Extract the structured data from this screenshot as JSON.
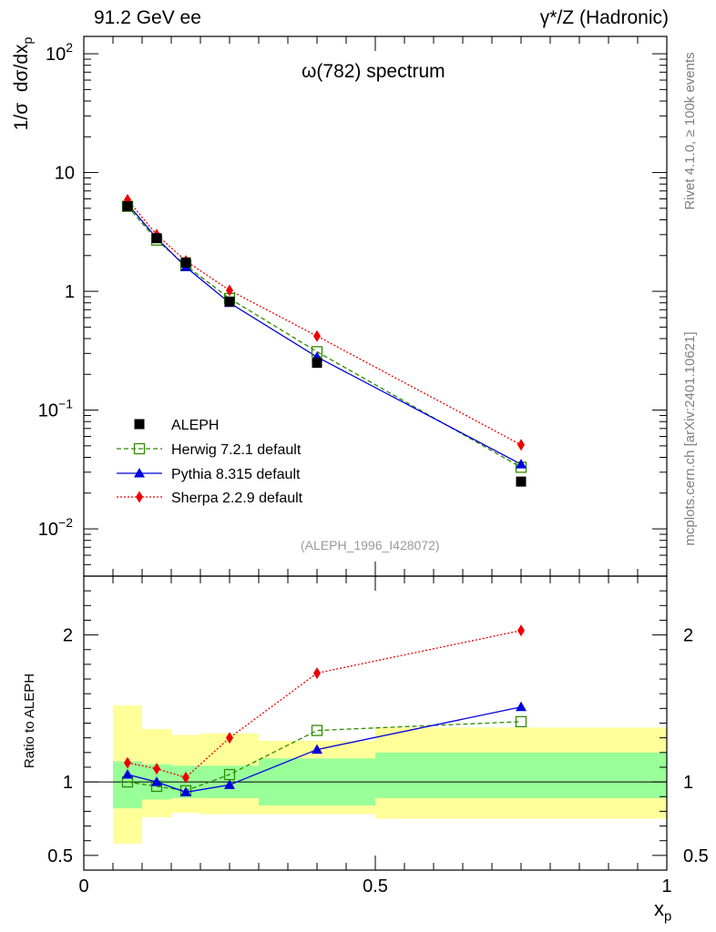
{
  "header": {
    "left": "91.2 GeV ee",
    "right": "γ*/Z (Hadronic)"
  },
  "side_text": {
    "top": "Rivet 4.1.0, ≥ 100k events",
    "bottom": "mcplots.cern.ch [arXiv:2401.10621]"
  },
  "chart_data": [
    {
      "type": "line",
      "title": "ω(782) spectrum",
      "ylabel_prefix": "1/σ",
      "ylabel_main": "dσ/dx",
      "ylabel_sub": "p",
      "yscale": "log",
      "ylim": [
        0.004,
        140
      ],
      "xlim": [
        0,
        1
      ],
      "yticks": [
        {
          "value": 0.01,
          "base": "10",
          "exp": "−2"
        },
        {
          "value": 0.1,
          "base": "10",
          "exp": "−1"
        },
        {
          "value": 1,
          "base": "1",
          "exp": ""
        },
        {
          "value": 10,
          "base": "10",
          "exp": ""
        },
        {
          "value": 100,
          "base": "10",
          "exp": "2"
        }
      ],
      "watermark": "(ALEPH_1996_I428072)",
      "x": [
        0.075,
        0.125,
        0.175,
        0.25,
        0.4,
        0.75
      ],
      "series": [
        {
          "name": "ALEPH",
          "color": "#000000",
          "marker": "square-filled",
          "line": "none",
          "values": [
            5.2,
            2.8,
            1.75,
            0.82,
            0.25,
            0.025
          ]
        },
        {
          "name": "Herwig 7.2.1 default",
          "color": "#2e8b00",
          "marker": "square-open",
          "line": "dashed",
          "values": [
            5.2,
            2.7,
            1.65,
            0.87,
            0.31,
            0.033
          ]
        },
        {
          "name": "Pythia 8.315 default",
          "color": "#0000dd",
          "marker": "triangle",
          "line": "solid",
          "values": [
            5.45,
            2.8,
            1.6,
            0.8,
            0.28,
            0.035
          ]
        },
        {
          "name": "Sherpa 2.2.9 default",
          "color": "#ee0000",
          "marker": "diamond",
          "line": "dotted",
          "values": [
            5.9,
            3.0,
            1.8,
            1.02,
            0.42,
            0.051
          ]
        }
      ]
    },
    {
      "type": "line",
      "ylabel": "Ratio to ALEPH",
      "xlabel_main": "x",
      "xlabel_sub": "p",
      "xlim": [
        0,
        1
      ],
      "ylim": [
        0.4,
        2.4
      ],
      "xticks": [
        {
          "value": 0,
          "label": "0"
        },
        {
          "value": 0.5,
          "label": "0.5"
        },
        {
          "value": 1,
          "label": "1"
        }
      ],
      "yticks": [
        {
          "value": 0.5,
          "label": "0.5"
        },
        {
          "value": 1,
          "label": "1"
        },
        {
          "value": 2,
          "label": "2"
        }
      ],
      "bands": [
        {
          "x0": 0.05,
          "x1": 0.1,
          "stat_lo": 0.82,
          "stat_hi": 1.14,
          "tot_lo": 0.58,
          "tot_hi": 1.52
        },
        {
          "x0": 0.1,
          "x1": 0.15,
          "stat_lo": 0.88,
          "stat_hi": 1.12,
          "tot_lo": 0.76,
          "tot_hi": 1.36
        },
        {
          "x0": 0.15,
          "x1": 0.2,
          "stat_lo": 0.89,
          "stat_hi": 1.11,
          "tot_lo": 0.79,
          "tot_hi": 1.32
        },
        {
          "x0": 0.2,
          "x1": 0.3,
          "stat_lo": 0.89,
          "stat_hi": 1.11,
          "tot_lo": 0.78,
          "tot_hi": 1.33
        },
        {
          "x0": 0.3,
          "x1": 0.5,
          "stat_lo": 0.84,
          "stat_hi": 1.16,
          "tot_lo": 0.78,
          "tot_hi": 1.28
        },
        {
          "x0": 0.5,
          "x1": 1.0,
          "stat_lo": 0.89,
          "stat_hi": 1.2,
          "tot_lo": 0.75,
          "tot_hi": 1.37
        }
      ],
      "x": [
        0.075,
        0.125,
        0.175,
        0.25,
        0.4,
        0.75
      ],
      "series": [
        {
          "name": "Herwig 7.2.1 default",
          "color": "#2e8b00",
          "marker": "square-open",
          "line": "dashed",
          "values": [
            1.0,
            0.97,
            0.94,
            1.05,
            1.35,
            1.41
          ]
        },
        {
          "name": "Pythia 8.315 default",
          "color": "#0000dd",
          "marker": "triangle",
          "line": "solid",
          "values": [
            1.05,
            1.0,
            0.93,
            0.98,
            1.22,
            1.51
          ]
        },
        {
          "name": "Sherpa 2.2.9 default",
          "color": "#ee0000",
          "marker": "diamond",
          "line": "dotted",
          "values": [
            1.13,
            1.09,
            1.03,
            1.3,
            1.74,
            2.03
          ]
        }
      ]
    }
  ]
}
